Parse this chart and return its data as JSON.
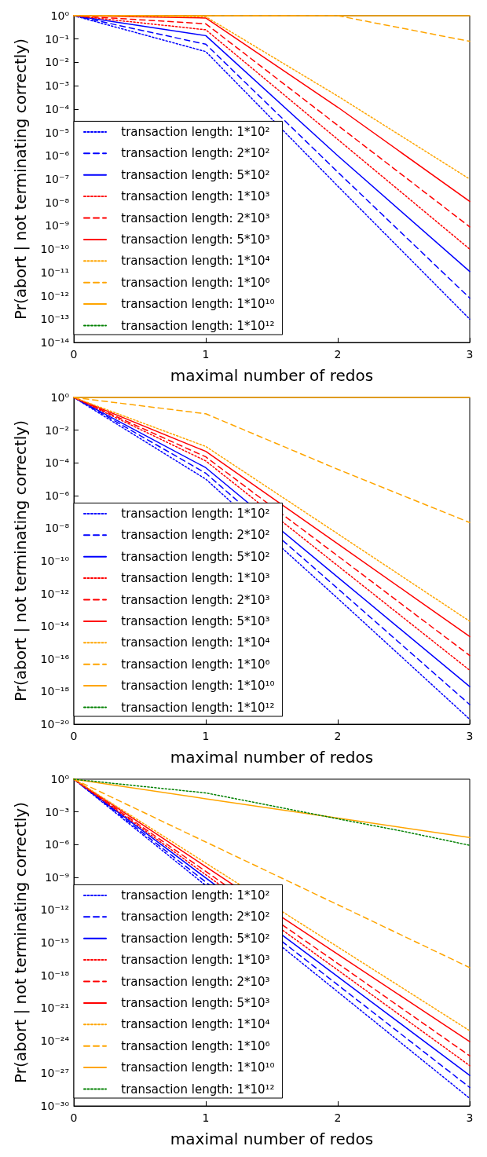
{
  "chart_data": [
    {
      "type": "line",
      "xlabel": "maximal number of redos",
      "ylabel": "Pr(abort | not terminating correctly)",
      "log": "y",
      "legend": "bottom left",
      "x": [
        0,
        1,
        2,
        3
      ],
      "xlim": [
        0,
        3
      ],
      "xticks": [
        0,
        1,
        2,
        3
      ],
      "ylim": [
        1e-14,
        1
      ],
      "yticks": [
        {
          "value": 1,
          "label": "10⁰"
        },
        {
          "value": 0.1,
          "label": "10⁻¹"
        },
        {
          "value": 0.01,
          "label": "10⁻²"
        },
        {
          "value": 0.001,
          "label": "10⁻³"
        },
        {
          "value": 0.0001,
          "label": "10⁻⁴"
        },
        {
          "value": 1e-05,
          "label": "10⁻⁵"
        },
        {
          "value": 1e-06,
          "label": "10⁻⁶"
        },
        {
          "value": 1e-07,
          "label": "10⁻⁷"
        },
        {
          "value": 1e-08,
          "label": "10⁻⁸"
        },
        {
          "value": 1e-09,
          "label": "10⁻⁹"
        },
        {
          "value": 1e-10,
          "label": "10⁻¹⁰"
        },
        {
          "value": 1e-11,
          "label": "10⁻¹¹"
        },
        {
          "value": 1e-12,
          "label": "10⁻¹²"
        },
        {
          "value": 1e-13,
          "label": "10⁻¹³"
        },
        {
          "value": 1e-14,
          "label": "10⁻¹⁴"
        }
      ],
      "series": [
        {
          "name": "transaction length: 1*10²",
          "color": "#0000ff",
          "line_style": "dotted",
          "values": [
            1,
            0.029,
            5e-08,
            1e-13
          ]
        },
        {
          "name": "transaction length: 2*10²",
          "color": "#0000ff",
          "line_style": "dashed",
          "values": [
            1,
            0.06,
            2e-07,
            8e-13
          ]
        },
        {
          "name": "transaction length: 5*10²",
          "color": "#0000ff",
          "line_style": "solid",
          "values": [
            1,
            0.14,
            1e-06,
            1.1e-11
          ]
        },
        {
          "name": "transaction length: 1*10³",
          "color": "#ff0000",
          "line_style": "dotted",
          "values": [
            1,
            0.25,
            5e-06,
            1e-10
          ]
        },
        {
          "name": "transaction length: 2*10³",
          "color": "#ff0000",
          "line_style": "dashed",
          "values": [
            1,
            0.45,
            2e-05,
            9e-10
          ]
        },
        {
          "name": "transaction length: 5*10³",
          "color": "#ff0000",
          "line_style": "solid",
          "values": [
            1,
            0.8,
            0.00012,
            1.1e-08
          ]
        },
        {
          "name": "transaction length: 1*10⁴",
          "color": "#ffa500",
          "line_style": "dotted",
          "values": [
            1,
            0.9,
            0.00036,
            1e-07
          ]
        },
        {
          "name": "transaction length: 1*10⁶",
          "color": "#ffa500",
          "line_style": "dashed",
          "values": [
            1,
            1,
            1,
            0.08
          ]
        },
        {
          "name": "transaction length: 1*10¹⁰",
          "color": "#ffa500",
          "line_style": "solid",
          "values": [
            1,
            1,
            1,
            1
          ]
        },
        {
          "name": "transaction length: 1*10¹²",
          "color": "#008000",
          "line_style": "dotted",
          "values": [
            null,
            null,
            null,
            null
          ]
        }
      ]
    },
    {
      "type": "line",
      "xlabel": "maximal number of redos",
      "ylabel": "Pr(abort | not terminating correctly)",
      "log": "y",
      "legend": "bottom left",
      "x": [
        0,
        1,
        2,
        3
      ],
      "xlim": [
        0,
        3
      ],
      "xticks": [
        0,
        1,
        2,
        3
      ],
      "ylim": [
        1e-20,
        1
      ],
      "yticks": [
        {
          "value": 1,
          "label": "10⁰"
        },
        {
          "value": 0.01,
          "label": "10⁻²"
        },
        {
          "value": 0.0001,
          "label": "10⁻⁴"
        },
        {
          "value": 1e-06,
          "label": "10⁻⁶"
        },
        {
          "value": 1e-08,
          "label": "10⁻⁸"
        },
        {
          "value": 1e-10,
          "label": "10⁻¹⁰"
        },
        {
          "value": 1e-12,
          "label": "10⁻¹²"
        },
        {
          "value": 1e-14,
          "label": "10⁻¹⁴"
        },
        {
          "value": 1e-16,
          "label": "10⁻¹⁶"
        },
        {
          "value": 1e-18,
          "label": "10⁻¹⁸"
        },
        {
          "value": 1e-20,
          "label": "10⁻²⁰"
        }
      ],
      "series": [
        {
          "name": "transaction length: 1*10²",
          "color": "#0000ff",
          "line_style": "dotted",
          "values": [
            1,
            1e-05,
            5e-13,
            2e-20
          ]
        },
        {
          "name": "transaction length: 2*10²",
          "color": "#0000ff",
          "line_style": "dashed",
          "values": [
            1,
            2.3e-05,
            2e-12,
            1.6e-19
          ]
        },
        {
          "name": "transaction length: 5*10²",
          "color": "#0000ff",
          "line_style": "solid",
          "values": [
            1,
            5e-05,
            1e-11,
            2e-18
          ]
        },
        {
          "name": "transaction length: 1*10³",
          "color": "#ff0000",
          "line_style": "dotted",
          "values": [
            1,
            0.00013,
            5e-11,
            2e-17
          ]
        },
        {
          "name": "transaction length: 2*10³",
          "color": "#ff0000",
          "line_style": "dashed",
          "values": [
            1,
            0.00023,
            2e-10,
            1.6e-16
          ]
        },
        {
          "name": "transaction length: 5*10³",
          "color": "#ff0000",
          "line_style": "solid",
          "values": [
            1,
            0.0005,
            1.1e-09,
            2.3e-15
          ]
        },
        {
          "name": "transaction length: 1*10⁴",
          "color": "#ffa500",
          "line_style": "dotted",
          "values": [
            1,
            0.001,
            4.5e-09,
            2e-14
          ]
        },
        {
          "name": "transaction length: 1*10⁶",
          "color": "#ffa500",
          "line_style": "dashed",
          "values": [
            1,
            0.1,
            4e-05,
            2.2e-08
          ]
        },
        {
          "name": "transaction length: 1*10¹⁰",
          "color": "#ffa500",
          "line_style": "solid",
          "values": [
            1,
            1,
            1,
            1
          ]
        },
        {
          "name": "transaction length: 1*10¹²",
          "color": "#008000",
          "line_style": "dotted",
          "values": [
            null,
            null,
            null,
            null
          ]
        }
      ]
    },
    {
      "type": "line",
      "xlabel": "maximal number of redos",
      "ylabel": "Pr(abort | not terminating correctly)",
      "log": "y",
      "legend": "bottom left",
      "x": [
        0,
        1,
        2,
        3
      ],
      "xlim": [
        0,
        3
      ],
      "xticks": [
        0,
        1,
        2,
        3
      ],
      "ylim": [
        1e-30,
        1
      ],
      "yticks": [
        {
          "value": 1,
          "label": "10⁰"
        },
        {
          "value": 0.001,
          "label": "10⁻³"
        },
        {
          "value": 1e-06,
          "label": "10⁻⁶"
        },
        {
          "value": 1e-09,
          "label": "10⁻⁹"
        },
        {
          "value": 1e-12,
          "label": "10⁻¹²"
        },
        {
          "value": 1e-15,
          "label": "10⁻¹⁵"
        },
        {
          "value": 1e-18,
          "label": "10⁻¹⁸"
        },
        {
          "value": 1e-21,
          "label": "10⁻²¹"
        },
        {
          "value": 1e-24,
          "label": "10⁻²⁴"
        },
        {
          "value": 1e-27,
          "label": "10⁻²⁷"
        },
        {
          "value": 1e-30,
          "label": "10⁻³⁰"
        }
      ],
      "series": [
        {
          "name": "transaction length: 1*10²",
          "color": "#0000ff",
          "line_style": "dotted",
          "values": [
            1,
            null,
            3e-20,
            5e-30
          ]
        },
        {
          "name": "transaction length: 2*10²",
          "color": "#0000ff",
          "line_style": "dashed",
          "values": [
            1,
            null,
            1.3e-19,
            5e-29
          ]
        },
        {
          "name": "transaction length: 5*10²",
          "color": "#0000ff",
          "line_style": "solid",
          "values": [
            1,
            null,
            7.4e-19,
            6.3e-28
          ]
        },
        {
          "name": "transaction length: 1*10³",
          "color": "#ff0000",
          "line_style": "dotted",
          "values": [
            1,
            1.7e-09,
            3e-18,
            5e-27
          ]
        },
        {
          "name": "transaction length: 2*10³",
          "color": "#ff0000",
          "line_style": "dashed",
          "values": [
            1,
            3.4e-09,
            1.2e-17,
            4e-26
          ]
        },
        {
          "name": "transaction length: 5*10³",
          "color": "#ff0000",
          "line_style": "solid",
          "values": [
            1,
            9.3e-09,
            8.5e-17,
            8e-25
          ]
        },
        {
          "name": "transaction length: 1*10⁴",
          "color": "#ffa500",
          "line_style": "dotted",
          "values": [
            1,
            2e-08,
            4e-16,
            8e-24
          ]
        },
        {
          "name": "transaction length: 1*10⁶",
          "color": "#ffa500",
          "line_style": "dashed",
          "values": [
            1,
            1.7e-06,
            3e-12,
            5e-18
          ]
        },
        {
          "name": "transaction length: 1*10¹⁰",
          "color": "#ffa500",
          "line_style": "solid",
          "values": [
            1,
            0.016,
            0.00027,
            4.4e-06
          ]
        },
        {
          "name": "transaction length: 1*10¹²",
          "color": "#008000",
          "line_style": "dotted",
          "x": [
            0,
            0.5,
            1,
            1.5,
            2,
            2.5,
            3
          ],
          "values": [
            1,
            0.23,
            0.055,
            0.0036,
            0.00023,
            1.6e-05,
            8.5e-07
          ]
        }
      ]
    }
  ]
}
